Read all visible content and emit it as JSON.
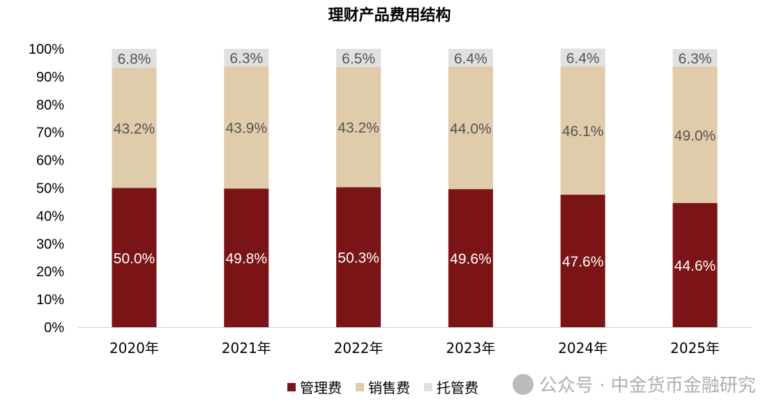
{
  "chart_data": {
    "type": "bar",
    "stacked": true,
    "title": "理财产品费用结构",
    "categories": [
      "2020年",
      "2021年",
      "2022年",
      "2023年",
      "2024年",
      "2025年"
    ],
    "series": [
      {
        "name": "管理费",
        "color": "#7B1416",
        "values": [
          50.0,
          49.8,
          50.3,
          49.6,
          47.6,
          44.6
        ],
        "labels": [
          "50.0%",
          "49.8%",
          "50.3%",
          "49.6%",
          "47.6%",
          "44.6%"
        ]
      },
      {
        "name": "销售费",
        "color": "#E0CBAA",
        "values": [
          43.2,
          43.9,
          43.2,
          44.0,
          46.1,
          49.0
        ],
        "labels": [
          "43.2%",
          "43.9%",
          "43.2%",
          "44.0%",
          "46.1%",
          "49.0%"
        ]
      },
      {
        "name": "托管费",
        "color": "#E0E0E0",
        "values": [
          6.8,
          6.3,
          6.5,
          6.4,
          6.4,
          6.3
        ],
        "labels": [
          "6.8%",
          "6.3%",
          "6.5%",
          "6.4%",
          "6.4%",
          "6.3%"
        ]
      }
    ],
    "ylim": [
      0,
      100
    ],
    "yticks": [
      "0%",
      "10%",
      "20%",
      "30%",
      "40%",
      "50%",
      "60%",
      "70%",
      "80%",
      "90%",
      "100%"
    ],
    "grid": false,
    "legend_position": "bottom"
  },
  "watermark": "公众号 · 中金货币金融研究"
}
